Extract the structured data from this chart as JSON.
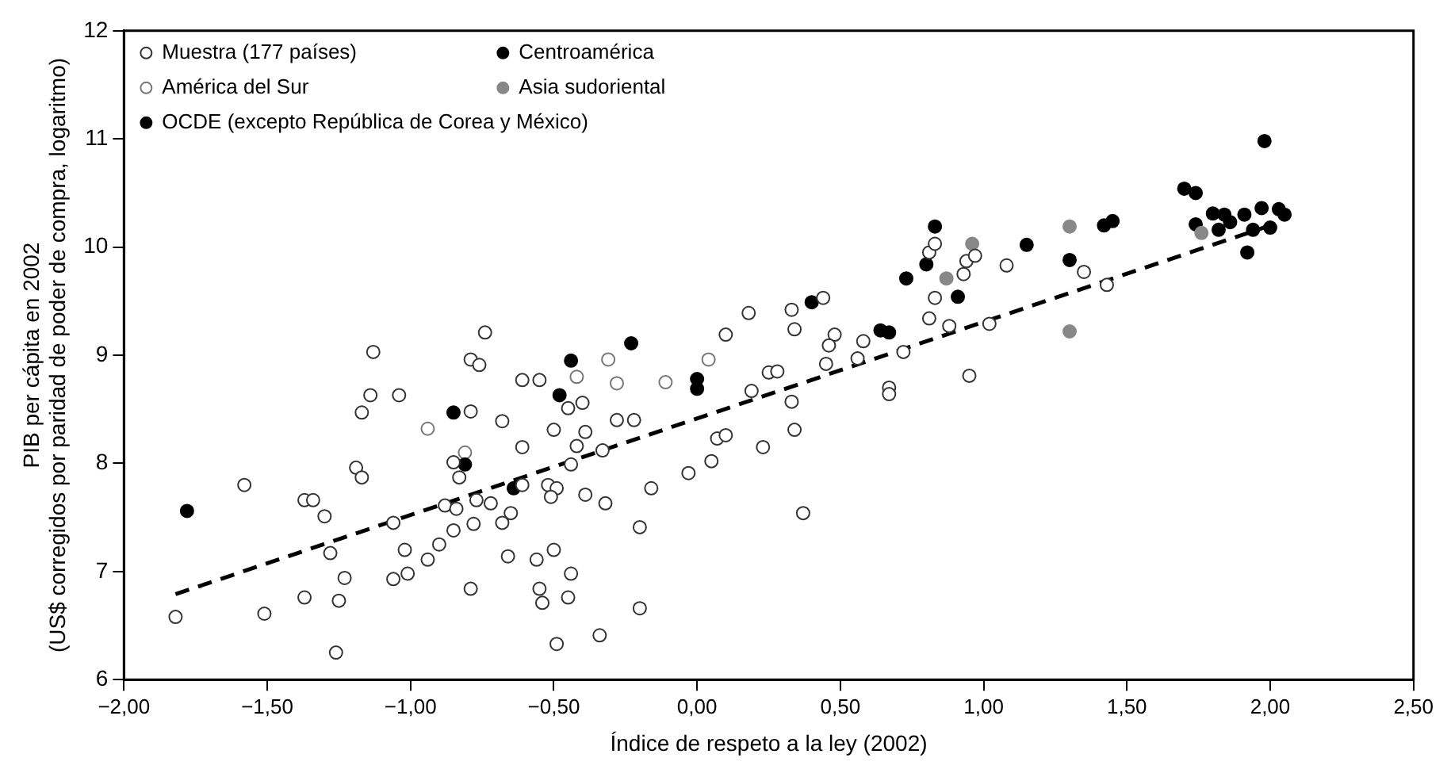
{
  "chart_data": {
    "type": "scatter",
    "xlabel": "Índice de respeto a la ley (2002)",
    "ylabel": "PIB per cápita en 2002\n(US$ corregidos por paridad de poder de compra, logaritmo)",
    "xlim": [
      -2,
      2.5
    ],
    "ylim": [
      6,
      12
    ],
    "xticks": [
      {
        "value": -2,
        "label": "−2,00"
      },
      {
        "value": -1.5,
        "label": "−1,50"
      },
      {
        "value": -1,
        "label": "−1,00"
      },
      {
        "value": -0.5,
        "label": "−0,50"
      },
      {
        "value": 0,
        "label": "0,00"
      },
      {
        "value": 0.5,
        "label": "0,50"
      },
      {
        "value": 1,
        "label": "1,00"
      },
      {
        "value": 1.5,
        "label": "1,50"
      },
      {
        "value": 2,
        "label": "2,00"
      },
      {
        "value": 2.5,
        "label": "2,50"
      }
    ],
    "yticks": [
      6,
      7,
      8,
      9,
      10,
      11,
      12
    ],
    "grid": false,
    "legend": "top left",
    "marker": "circle",
    "series": [
      {
        "name": "Muestra (177 países)",
        "color": "#333333",
        "x": [
          -1.14,
          -1.04,
          -1.17,
          -0.79,
          -0.45,
          -0.4,
          -0.68,
          -0.5,
          -0.39,
          -0.61,
          -0.42,
          -1.19,
          -1.17,
          -0.85,
          -0.83,
          -0.44,
          -1.58,
          -0.61,
          -0.52,
          -0.49,
          -0.51,
          -0.39,
          -1.37,
          -1.34,
          -1.3,
          -0.88,
          -0.84,
          -0.77,
          -0.72,
          -0.65,
          -0.68,
          -0.78,
          -1.06,
          -0.85,
          -0.9,
          -0.94,
          -1.02,
          -1.28,
          -0.66,
          -0.56,
          -0.5,
          -0.44,
          -1.23,
          -1.06,
          -1.01,
          -0.79,
          -0.55,
          -0.54,
          -0.45,
          -1.37,
          -1.25,
          -1.82,
          -1.51,
          -0.49,
          -1.26,
          -1.13,
          -0.74,
          -0.79,
          -0.76,
          -0.61,
          -0.55,
          0.1,
          0.18,
          0.33,
          0.34,
          0.44,
          0.48,
          0.46,
          0.45,
          0.58,
          0.56,
          0.72,
          0.67,
          0.67,
          0.25,
          0.28,
          0.19,
          0.33,
          0.34,
          0.23,
          0.07,
          0.1,
          0.05,
          -0.03,
          0.37,
          -0.22,
          -0.28,
          -0.33,
          -0.32,
          -0.16,
          -0.2,
          -0.2,
          -0.34,
          0.81,
          0.83,
          0.81,
          0.83,
          0.88,
          0.93,
          0.94,
          0.97,
          0.95,
          1.02,
          1.08,
          1.35,
          1.43
        ],
        "values": [
          8.63,
          8.63,
          8.47,
          8.48,
          8.51,
          8.56,
          8.39,
          8.31,
          8.29,
          8.15,
          8.16,
          7.96,
          7.87,
          8.01,
          7.87,
          7.99,
          7.8,
          7.8,
          7.8,
          7.77,
          7.69,
          7.71,
          7.66,
          7.66,
          7.51,
          7.61,
          7.58,
          7.66,
          7.63,
          7.54,
          7.45,
          7.44,
          7.45,
          7.38,
          7.25,
          7.11,
          7.2,
          7.17,
          7.14,
          7.11,
          7.2,
          6.98,
          6.94,
          6.93,
          6.98,
          6.84,
          6.84,
          6.71,
          6.76,
          6.76,
          6.73,
          6.58,
          6.61,
          6.33,
          6.25,
          9.03,
          9.21,
          8.96,
          8.91,
          8.77,
          8.77,
          9.19,
          9.39,
          9.42,
          9.24,
          9.53,
          9.19,
          9.09,
          8.92,
          9.13,
          8.97,
          9.03,
          8.7,
          8.64,
          8.84,
          8.85,
          8.67,
          8.57,
          8.31,
          8.15,
          8.23,
          8.26,
          8.02,
          7.91,
          7.54,
          8.4,
          8.4,
          8.12,
          7.63,
          7.77,
          7.41,
          6.66,
          6.41,
          9.34,
          9.53,
          9.95,
          10.03,
          9.27,
          9.75,
          9.87,
          9.92,
          8.81,
          9.29,
          9.83,
          9.77,
          9.65
        ]
      },
      {
        "name": "Centroamérica",
        "color": "#000000",
        "x": [
          -1.78,
          -0.85,
          -0.81,
          -0.64,
          -0.48,
          -0.44,
          -0.23,
          0.0,
          0.0,
          0.4,
          0.64,
          0.67
        ],
        "values": [
          7.56,
          8.47,
          7.99,
          7.77,
          8.63,
          8.95,
          9.11,
          8.78,
          8.69,
          9.49,
          9.23,
          9.21
        ]
      },
      {
        "name": "América del Sur",
        "color": "#777777",
        "x": [
          -0.31,
          -0.28,
          -0.11,
          0.04,
          -0.42,
          -0.94,
          -0.81
        ],
        "values": [
          8.96,
          8.74,
          8.75,
          8.96,
          8.8,
          8.32,
          8.1
        ]
      },
      {
        "name": "Asia sudoriental",
        "color": "#888888",
        "x": [
          0.87,
          0.96,
          1.3,
          1.3,
          1.76
        ],
        "values": [
          9.71,
          10.03,
          10.19,
          9.22,
          10.13
        ]
      },
      {
        "name": "OCDE (excepto República de Corea y México)",
        "color": "#000000",
        "x": [
          0.73,
          0.8,
          0.83,
          0.91,
          1.15,
          1.3,
          1.42,
          1.45,
          1.7,
          1.74,
          1.74,
          1.8,
          1.84,
          1.86,
          1.82,
          1.91,
          1.94,
          1.97,
          2.0,
          2.03,
          2.05,
          1.92,
          1.98
        ],
        "values": [
          9.71,
          9.84,
          10.19,
          9.54,
          10.02,
          9.88,
          10.2,
          10.24,
          10.54,
          10.5,
          10.21,
          10.31,
          10.3,
          10.23,
          10.16,
          10.3,
          10.16,
          10.36,
          10.18,
          10.35,
          10.3,
          9.95,
          10.98
        ]
      },
      {
        "type": "line",
        "color": "#000000",
        "line_style": "dashed",
        "marker": "none",
        "x": [
          -1.82,
          2.0
        ],
        "values": [
          6.79,
          10.2
        ]
      }
    ]
  }
}
